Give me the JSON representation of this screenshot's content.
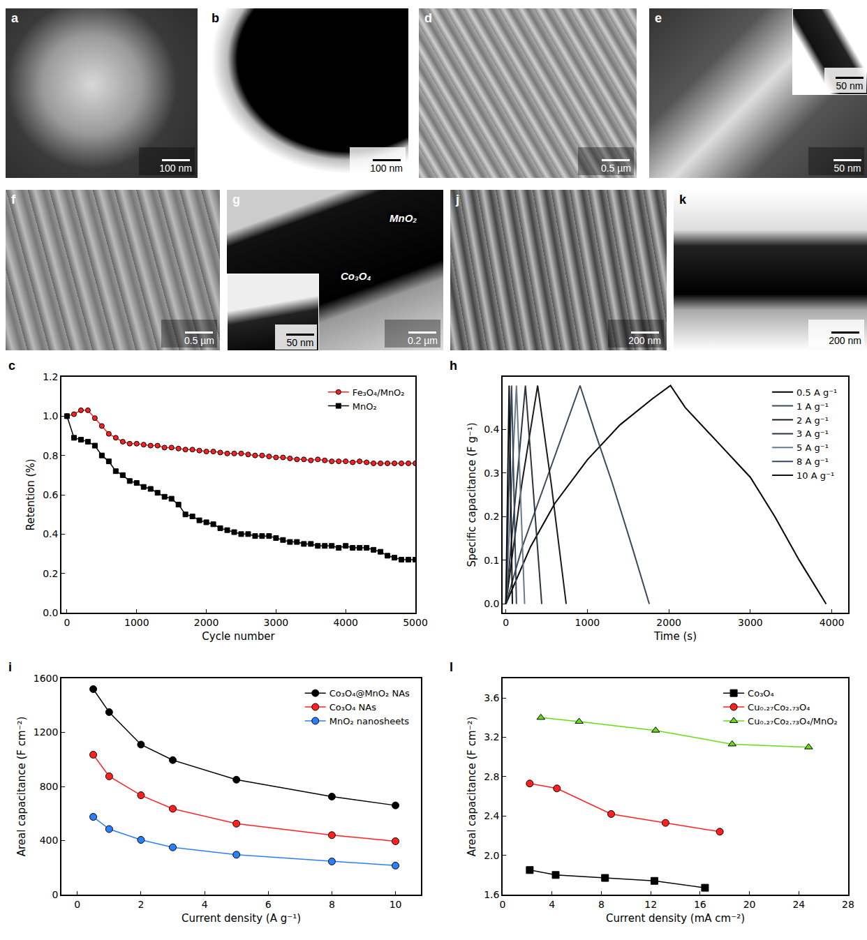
{
  "image_panels": [
    {
      "letter": "a",
      "scale_bar": "100 nm"
    },
    {
      "letter": "b",
      "scale_bar": "100 nm"
    },
    {
      "letter": "d",
      "scale_bar": "0.5 µm"
    },
    {
      "letter": "e",
      "scale_bar": "50 nm",
      "inset_scale_bar": "50 nm"
    },
    {
      "letter": "f",
      "scale_bar": "0.5 µm"
    },
    {
      "letter": "g",
      "scale_bar": "0.2 µm",
      "inset_scale_bar": "50 nm",
      "labels": [
        "MnO₂",
        "Co₃O₄"
      ]
    },
    {
      "letter": "j",
      "scale_bar": "200 nm"
    },
    {
      "letter": "k",
      "scale_bar": "200 nm"
    }
  ],
  "chart_data": [
    {
      "panel": "c",
      "type": "line",
      "x_label": "Cycle number",
      "y_label": "Retention (%)",
      "xlim": [
        -80,
        5000
      ],
      "xticks": [
        0,
        1000,
        2000,
        3000,
        4000,
        5000
      ],
      "ylim": [
        0,
        1.2
      ],
      "yticks": [
        {
          "value": 0,
          "label": "0.0"
        },
        0.2,
        0.4,
        0.6,
        0.8,
        {
          "value": 1,
          "label": "1.0"
        },
        0.2,
        {
          "value": 1.2,
          "label": "1.2"
        }
      ],
      "grid": false,
      "legend": "upper right",
      "series": [
        {
          "name": "Fe₃O₄/MnO₂",
          "color": "#ff2020",
          "marker": "circle",
          "line_style": "solid",
          "x": [
            0,
            100,
            200,
            300,
            400,
            500,
            600,
            700,
            800,
            900,
            1000,
            1100,
            1200,
            1300,
            1400,
            1500,
            1600,
            1700,
            1800,
            1900,
            2000,
            2100,
            2200,
            2300,
            2400,
            2500,
            2600,
            2700,
            2800,
            2900,
            3000,
            3100,
            3200,
            3300,
            3400,
            3500,
            3600,
            3700,
            3800,
            3900,
            4000,
            4100,
            4200,
            4300,
            4400,
            4500,
            4600,
            4700,
            4800,
            4900,
            5000
          ],
          "values": [
            1.0,
            1.01,
            1.03,
            1.03,
            0.99,
            0.95,
            0.91,
            0.89,
            0.87,
            0.86,
            0.86,
            0.855,
            0.85,
            0.85,
            0.84,
            0.84,
            0.835,
            0.83,
            0.83,
            0.825,
            0.82,
            0.82,
            0.815,
            0.81,
            0.81,
            0.81,
            0.805,
            0.8,
            0.8,
            0.795,
            0.79,
            0.79,
            0.785,
            0.78,
            0.78,
            0.775,
            0.78,
            0.775,
            0.77,
            0.77,
            0.77,
            0.765,
            0.77,
            0.765,
            0.76,
            0.76,
            0.76,
            0.76,
            0.76,
            0.76,
            0.76
          ]
        },
        {
          "name": "MnO₂",
          "color": "#000000",
          "marker": "square",
          "line_style": "solid",
          "x": [
            0,
            100,
            200,
            300,
            400,
            500,
            600,
            700,
            800,
            900,
            1000,
            1100,
            1200,
            1300,
            1400,
            1500,
            1600,
            1700,
            1800,
            1900,
            2000,
            2100,
            2200,
            2300,
            2400,
            2500,
            2600,
            2700,
            2800,
            2900,
            3000,
            3100,
            3200,
            3300,
            3400,
            3500,
            3600,
            3700,
            3800,
            3900,
            4000,
            4100,
            4200,
            4300,
            4400,
            4500,
            4600,
            4700,
            4800,
            4900,
            5000
          ],
          "values": [
            1.0,
            0.89,
            0.88,
            0.87,
            0.85,
            0.8,
            0.77,
            0.72,
            0.7,
            0.67,
            0.66,
            0.64,
            0.63,
            0.61,
            0.59,
            0.58,
            0.55,
            0.5,
            0.49,
            0.47,
            0.46,
            0.45,
            0.43,
            0.42,
            0.41,
            0.4,
            0.4,
            0.39,
            0.39,
            0.39,
            0.38,
            0.37,
            0.36,
            0.36,
            0.35,
            0.35,
            0.34,
            0.34,
            0.34,
            0.33,
            0.34,
            0.33,
            0.33,
            0.33,
            0.32,
            0.31,
            0.29,
            0.28,
            0.27,
            0.27,
            0.27
          ]
        }
      ]
    },
    {
      "panel": "h",
      "type": "line",
      "x_label": "Time (s)",
      "y_label": "Specific capacitance (F g⁻¹)",
      "xlim": [
        -40,
        4200
      ],
      "xticks": [
        0,
        1000,
        2000,
        3000,
        4000
      ],
      "ylim": [
        -0.02,
        0.52
      ],
      "yticks": [
        {
          "value": 0,
          "label": "0.0"
        },
        0.1,
        0.2,
        0.3,
        0.4
      ],
      "grid": false,
      "legend": "upper right",
      "series": [
        {
          "name": "0.5 A g⁻¹",
          "color": "#000000",
          "marker": "none",
          "line_style": "solid",
          "x": [
            0,
            300,
            600,
            1000,
            1400,
            1800,
            2020,
            2200,
            2600,
            3000,
            3300,
            3600,
            3930
          ],
          "values": [
            0,
            0.13,
            0.23,
            0.33,
            0.41,
            0.47,
            0.5,
            0.45,
            0.37,
            0.29,
            0.2,
            0.1,
            0
          ]
        },
        {
          "name": "1 A g⁻¹",
          "color": "#3a4a5a",
          "marker": "none",
          "line_style": "solid",
          "x": [
            0,
            200,
            450,
            700,
            910,
            1100,
            1300,
            1550,
            1760
          ],
          "values": [
            0,
            0.13,
            0.26,
            0.39,
            0.5,
            0.39,
            0.28,
            0.13,
            0
          ]
        },
        {
          "name": "2 A g⁻¹",
          "color": "#1a1a1a",
          "marker": "none",
          "line_style": "solid",
          "x": [
            0,
            200,
            390,
            560,
            740
          ],
          "values": [
            0,
            0.28,
            0.5,
            0.27,
            0
          ]
        },
        {
          "name": "3 A g⁻¹",
          "color": "#2a3540",
          "marker": "none",
          "line_style": "solid",
          "x": [
            0,
            240,
            440
          ],
          "values": [
            0,
            0.5,
            0
          ]
        },
        {
          "name": "5 A g⁻¹",
          "color": "#6a7a88",
          "marker": "none",
          "line_style": "solid",
          "x": [
            0,
            130,
            230
          ],
          "values": [
            0,
            0.5,
            0
          ]
        },
        {
          "name": "8 A g⁻¹",
          "color": "#34495e",
          "marker": "none",
          "line_style": "solid",
          "x": [
            0,
            70,
            130
          ],
          "values": [
            0,
            0.5,
            0
          ]
        },
        {
          "name": "10 A g⁻¹",
          "color": "#101010",
          "marker": "none",
          "line_style": "solid",
          "x": [
            0,
            40,
            80
          ],
          "values": [
            0,
            0.5,
            0
          ]
        }
      ]
    },
    {
      "panel": "i",
      "type": "line",
      "x_label": "Current density (A g⁻¹)",
      "y_label": "Areal capacitance (F cm⁻²)",
      "xlim": [
        -0.5,
        10.8
      ],
      "xticks": [
        0,
        2,
        4,
        6,
        8,
        10
      ],
      "ylim": [
        0,
        1600
      ],
      "yticks": [
        0,
        400,
        800,
        1200,
        1600
      ],
      "grid": false,
      "legend": "upper right",
      "series": [
        {
          "name": "Co₃O₄@MnO₂ NAs",
          "color": "#000000",
          "marker": "circle",
          "line_style": "solid",
          "x": [
            0.5,
            1,
            2,
            3,
            5,
            8,
            10
          ],
          "values": [
            1520,
            1350,
            1110,
            995,
            850,
            725,
            660
          ]
        },
        {
          "name": "Co₃O₄ NAs",
          "color": "#ff2020",
          "marker": "circle",
          "line_style": "solid",
          "x": [
            0.5,
            1,
            2,
            3,
            5,
            8,
            10
          ],
          "values": [
            1035,
            875,
            735,
            635,
            525,
            440,
            395
          ]
        },
        {
          "name": "MnO₂ nanosheets",
          "color": "#2a7fff",
          "marker": "circle",
          "line_style": "solid",
          "x": [
            0.5,
            1,
            2,
            3,
            5,
            8,
            10
          ],
          "values": [
            575,
            485,
            405,
            350,
            295,
            245,
            215
          ]
        }
      ]
    },
    {
      "panel": "l",
      "type": "line",
      "x_label": "Current density (mA cm⁻²)",
      "y_label": "Areal capacitance (F cm⁻²)",
      "xlim": [
        0,
        28
      ],
      "xticks": [
        0,
        4,
        8,
        12,
        16,
        20,
        24,
        28
      ],
      "ylim": [
        1.6,
        3.8
      ],
      "yticks": [
        1.6,
        {
          "value": 2,
          "label": "2.0"
        },
        2.4,
        2.8,
        3.2,
        3.6
      ],
      "grid": false,
      "legend": "upper right",
      "series": [
        {
          "name": "Co₃O₄",
          "color": "#000000",
          "marker": "square",
          "line_style": "solid",
          "x": [
            2.2,
            4.3,
            8.3,
            12.3,
            16.4
          ],
          "values": [
            1.85,
            1.8,
            1.77,
            1.74,
            1.67
          ]
        },
        {
          "name": "Cu₀.₂₇Co₂.₇₃O₄",
          "color": "#ff2020",
          "marker": "circle",
          "line_style": "solid",
          "x": [
            2.2,
            4.4,
            8.8,
            13.2,
            17.6
          ],
          "values": [
            2.73,
            2.68,
            2.42,
            2.33,
            2.24
          ]
        },
        {
          "name": "Cu₀.₂₇Co₂.₇₃O₄/MnO₂",
          "color": "#66dd11",
          "marker": "triangle-up",
          "line_style": "solid",
          "x": [
            3.1,
            6.2,
            12.4,
            18.6,
            24.8
          ],
          "values": [
            3.4,
            3.36,
            3.27,
            3.13,
            3.1
          ]
        }
      ]
    }
  ]
}
